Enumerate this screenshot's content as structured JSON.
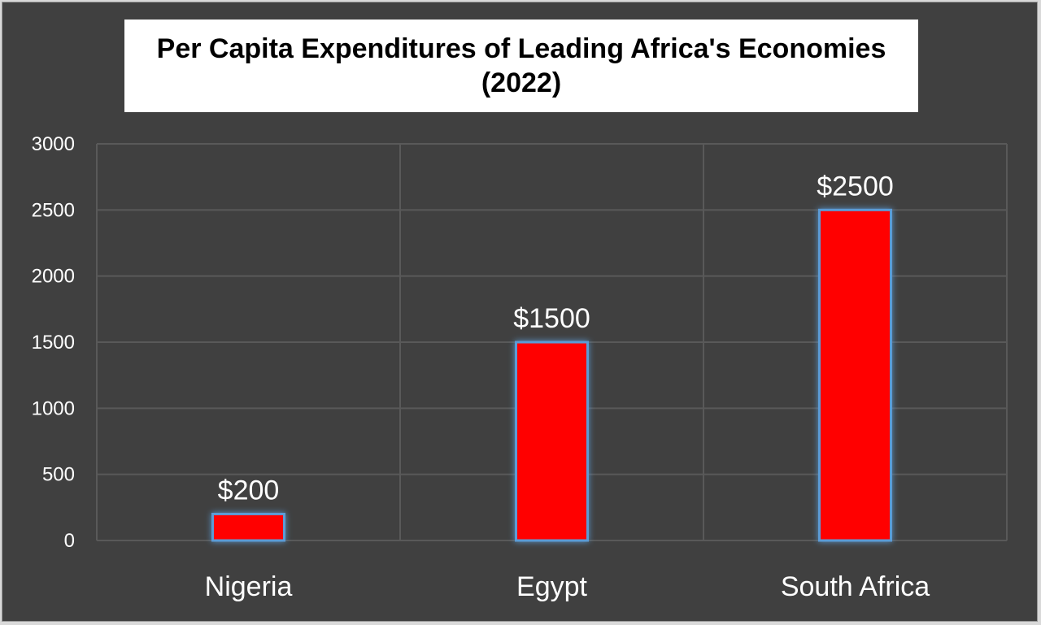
{
  "chart_data": {
    "type": "bar",
    "title": "Per Capita Expenditures of Leading Africa's Economies (2022)",
    "categories": [
      "Nigeria",
      "Egypt",
      "South Africa"
    ],
    "values": [
      200,
      1500,
      2500
    ],
    "data_labels": [
      "$200",
      "$1500",
      "$2500"
    ],
    "ylim": [
      0,
      3000
    ],
    "yticks": [
      0,
      500,
      1000,
      1500,
      2000,
      2500,
      3000
    ],
    "ytick_labels": [
      "0",
      "500",
      "1000",
      "1500",
      "2000",
      "2500",
      "3000"
    ],
    "xlabel": "",
    "ylabel": "",
    "grid": true,
    "legend": "none"
  },
  "colors": {
    "background": "#404040",
    "bar_fill": "#ff0000",
    "bar_outline": "#5b9bd5",
    "gridline": "#595959",
    "title_box": "#ffffff",
    "text": "#ffffff"
  }
}
